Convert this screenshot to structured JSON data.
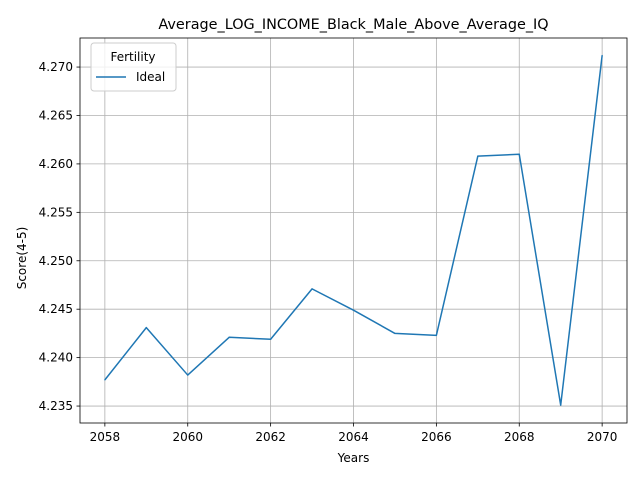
{
  "chart_data": {
    "type": "line",
    "title": "Average_LOG_INCOME_Black_Male_Above_Average_IQ",
    "xlabel": "Years",
    "ylabel": "Score(4-5)",
    "xlim": [
      2057.4,
      2070.6
    ],
    "ylim": [
      4.23325,
      4.273
    ],
    "x_ticks": [
      2058,
      2060,
      2062,
      2064,
      2066,
      2068,
      2070
    ],
    "y_ticks": [
      4.235,
      4.24,
      4.245,
      4.25,
      4.255,
      4.26,
      4.265,
      4.27
    ],
    "y_tick_decimals": 3,
    "grid": true,
    "legend": {
      "title": "Fertility",
      "position": "top-left"
    },
    "series": [
      {
        "name": "Ideal",
        "color": "#1f77b4",
        "x": [
          2058,
          2059,
          2060,
          2061,
          2062,
          2063,
          2064,
          2065,
          2066,
          2067,
          2068,
          2069,
          2070
        ],
        "y": [
          4.2377,
          4.2431,
          4.2382,
          4.2421,
          4.2419,
          4.2471,
          4.2449,
          4.2425,
          4.2423,
          4.2608,
          4.261,
          4.2351,
          4.2712
        ]
      }
    ]
  }
}
